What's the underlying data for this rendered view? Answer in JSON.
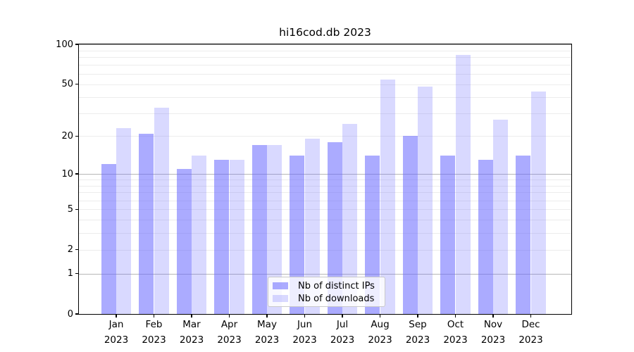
{
  "title": "hi16cod.db 2023",
  "colors": {
    "ips_bar": "rgba(102,102,255,0.55)",
    "downloads_bar": "rgba(102,102,255,0.25)",
    "grid_major": "#b6b6b6",
    "grid_minor": "#ececec",
    "axis": "#000000",
    "legend_border": "#c9c9c9",
    "legend_bg": "rgba(255,255,255,0.8)"
  },
  "legend": {
    "items": [
      "Nb of distinct IPs",
      "Nb of downloads"
    ]
  },
  "chart_data": {
    "type": "bar",
    "title": "hi16cod.db 2023",
    "categories": [
      "Jan",
      "Feb",
      "Mar",
      "Apr",
      "May",
      "Jun",
      "Jul",
      "Aug",
      "Sep",
      "Oct",
      "Nov",
      "Dec"
    ],
    "year": "2023",
    "series": [
      {
        "name": "Nb of distinct IPs",
        "values": [
          12,
          21,
          11,
          13,
          17,
          14,
          18,
          14,
          20,
          14,
          13,
          14
        ]
      },
      {
        "name": "Nb of downloads",
        "values": [
          23,
          33,
          14,
          13,
          17,
          19,
          25,
          54,
          48,
          83,
          27,
          44
        ]
      }
    ],
    "yscale": "log1p",
    "ylim": [
      0,
      100
    ],
    "yticks": [
      0,
      1,
      2,
      5,
      10,
      20,
      50,
      100
    ],
    "grid_major": [
      1,
      10,
      100
    ],
    "grid_minor": [
      2,
      3,
      4,
      5,
      6,
      7,
      8,
      9,
      20,
      30,
      40,
      50,
      60,
      70,
      80,
      90
    ],
    "grid": true,
    "legend_position": "lower center",
    "xlabel": "",
    "ylabel": ""
  }
}
